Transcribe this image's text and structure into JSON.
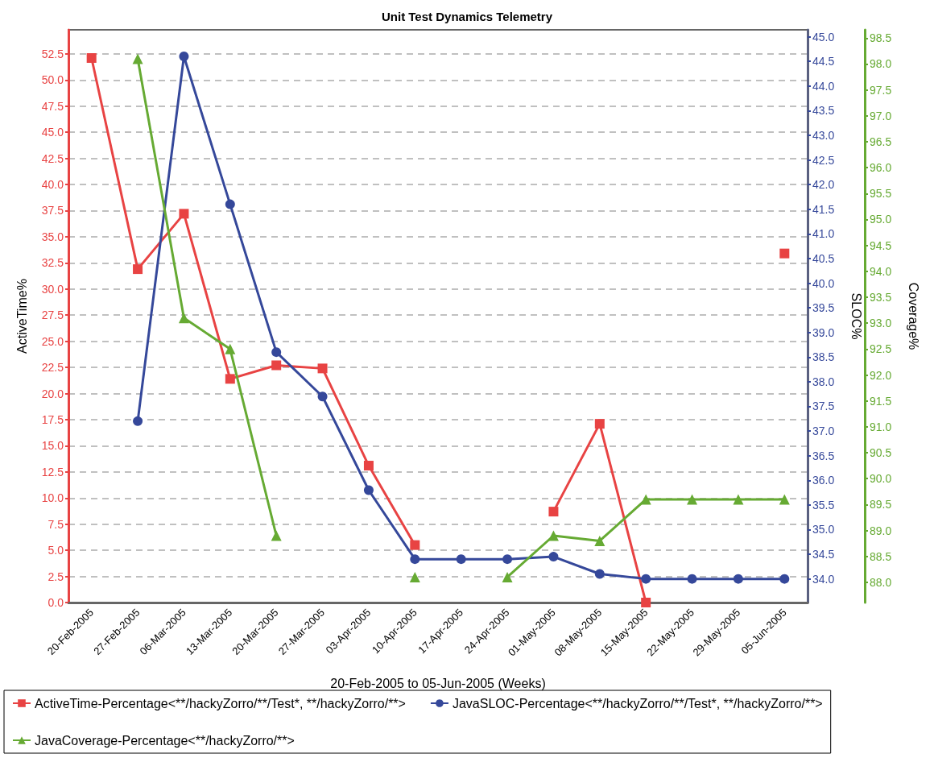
{
  "chart_data": {
    "type": "line",
    "title": "Unit Test Dynamics Telemetry",
    "xlabel": "20-Feb-2005 to 05-Jun-2005 (Weeks)",
    "ylabel": "ActiveTime%",
    "y2label": "SLOC%",
    "y3label": "Coverage%",
    "categories": [
      "20-Feb-2005",
      "27-Feb-2005",
      "06-Mar-2005",
      "13-Mar-2005",
      "20-Mar-2005",
      "27-Mar-2005",
      "03-Apr-2005",
      "10-Apr-2005",
      "17-Apr-2005",
      "24-Apr-2005",
      "01-May-2005",
      "08-May-2005",
      "15-May-2005",
      "22-May-2005",
      "29-May-2005",
      "05-Jun-2005"
    ],
    "series": [
      {
        "name": "ActiveTime-Percentage<**/hackyZorro/**/Test*, **/hackyZorro/**>",
        "color": "#e84343",
        "marker": "square",
        "axis": "y",
        "values": [
          52.1,
          31.9,
          37.2,
          21.4,
          22.7,
          22.4,
          13.1,
          5.5,
          null,
          null,
          8.7,
          17.1,
          0,
          null,
          null,
          33.4
        ]
      },
      {
        "name": "JavaSLOC-Percentage<**/hackyZorro/**/Test*, **/hackyZorro/**>",
        "color": "#35489a",
        "marker": "circle",
        "axis": "y2",
        "values": [
          null,
          37.2,
          44.6,
          41.6,
          38.6,
          37.7,
          35.8,
          34.4,
          34.4,
          34.4,
          34.45,
          34.1,
          34.0,
          34.0,
          34.0,
          34.0
        ]
      },
      {
        "name": "JavaCoverage-Percentage<**/hackyZorro/**>",
        "color": "#66aa33",
        "marker": "triangle",
        "axis": "y3",
        "values": [
          null,
          98.1,
          93.1,
          92.5,
          88.9,
          null,
          null,
          88.1,
          null,
          88.1,
          88.9,
          88.8,
          89.6,
          89.6,
          89.6,
          89.6
        ]
      }
    ],
    "ylim": [
      0,
      54.8
    ],
    "yticks": [
      {
        "value": 0,
        "label": "0.0"
      },
      2.5,
      {
        "value": 5,
        "label": "5.0"
      },
      7.5,
      {
        "value": 10,
        "label": "10.0"
      },
      12.5,
      {
        "value": 15,
        "label": "15.0"
      },
      17.5,
      {
        "value": 20,
        "label": "20.0"
      },
      22.5,
      {
        "value": 25,
        "label": "25.0"
      },
      27.5,
      {
        "value": 30,
        "label": "30.0"
      },
      32.5,
      {
        "value": 35,
        "label": "35.0"
      },
      37.5,
      {
        "value": 40,
        "label": "40.0"
      },
      42.5,
      {
        "value": 45,
        "label": "45.0"
      },
      47.5,
      {
        "value": 50,
        "label": "50.0"
      },
      52.5
    ],
    "y2lim": [
      33.52,
      45.14
    ],
    "y2ticks": [
      {
        "value": 34,
        "label": "34.0"
      },
      34.5,
      {
        "value": 35,
        "label": "35.0"
      },
      35.5,
      {
        "value": 36,
        "label": "36.0"
      },
      36.5,
      {
        "value": 37,
        "label": "37.0"
      },
      37.5,
      {
        "value": 38,
        "label": "38.0"
      },
      38.5,
      {
        "value": 39,
        "label": "39.0"
      },
      39.5,
      {
        "value": 40,
        "label": "40.0"
      },
      40.5,
      {
        "value": 41,
        "label": "41.0"
      },
      41.5,
      {
        "value": 42,
        "label": "42.0"
      },
      42.5,
      {
        "value": 43,
        "label": "43.0"
      },
      43.5,
      {
        "value": 44,
        "label": "44.0"
      },
      44.5,
      {
        "value": 45,
        "label": "45.0"
      }
    ],
    "y3lim": [
      87.61,
      98.66
    ],
    "y3ticks": [
      {
        "value": 88,
        "label": "88.0"
      },
      88.5,
      {
        "value": 89,
        "label": "89.0"
      },
      89.5,
      {
        "value": 90,
        "label": "90.0"
      },
      90.5,
      {
        "value": 91,
        "label": "91.0"
      },
      91.5,
      {
        "value": 92,
        "label": "92.0"
      },
      92.5,
      {
        "value": 93,
        "label": "93.0"
      },
      93.5,
      {
        "value": 94,
        "label": "94.0"
      },
      94.5,
      {
        "value": 95,
        "label": "95.0"
      },
      95.5,
      {
        "value": 96,
        "label": "96.0"
      },
      96.5,
      {
        "value": 97,
        "label": "97.0"
      },
      97.5,
      {
        "value": 98,
        "label": "98.0"
      },
      98.5
    ],
    "grid": "y",
    "legend": "bottom",
    "line_style": "solid"
  }
}
